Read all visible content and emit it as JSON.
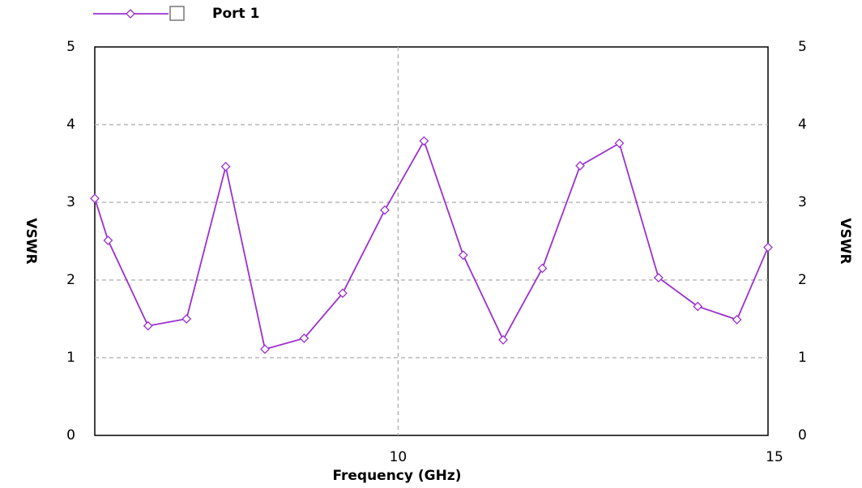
{
  "chart_data": {
    "type": "line",
    "x_label": "Frequency (GHz)",
    "y_label": "VSWR",
    "y2_label": "VSWR",
    "x": [
      5.9,
      6.08,
      6.62,
      7.14,
      7.67,
      8.2,
      8.73,
      9.25,
      9.82,
      10.35,
      10.88,
      11.42,
      11.95,
      12.46,
      12.99,
      13.52,
      14.05,
      14.58,
      15.0
    ],
    "series": [
      {
        "name": "Port 1",
        "color": "#9b30d0",
        "values": [
          3.05,
          2.51,
          1.41,
          1.5,
          3.46,
          1.11,
          1.25,
          1.83,
          2.9,
          3.79,
          2.32,
          1.23,
          2.15,
          3.47,
          3.76,
          2.03,
          1.66,
          1.49,
          2.42
        ]
      }
    ],
    "xlim": [
      5.9,
      15
    ],
    "xticks": [
      10,
      15
    ],
    "ylim": [
      0,
      5
    ],
    "yticks": [
      0,
      1,
      2,
      3,
      4,
      5
    ],
    "y2lim": [
      0,
      5
    ],
    "y2ticks": [
      0,
      1,
      2,
      3,
      4,
      5
    ],
    "grid": true,
    "legend": "top-left"
  }
}
